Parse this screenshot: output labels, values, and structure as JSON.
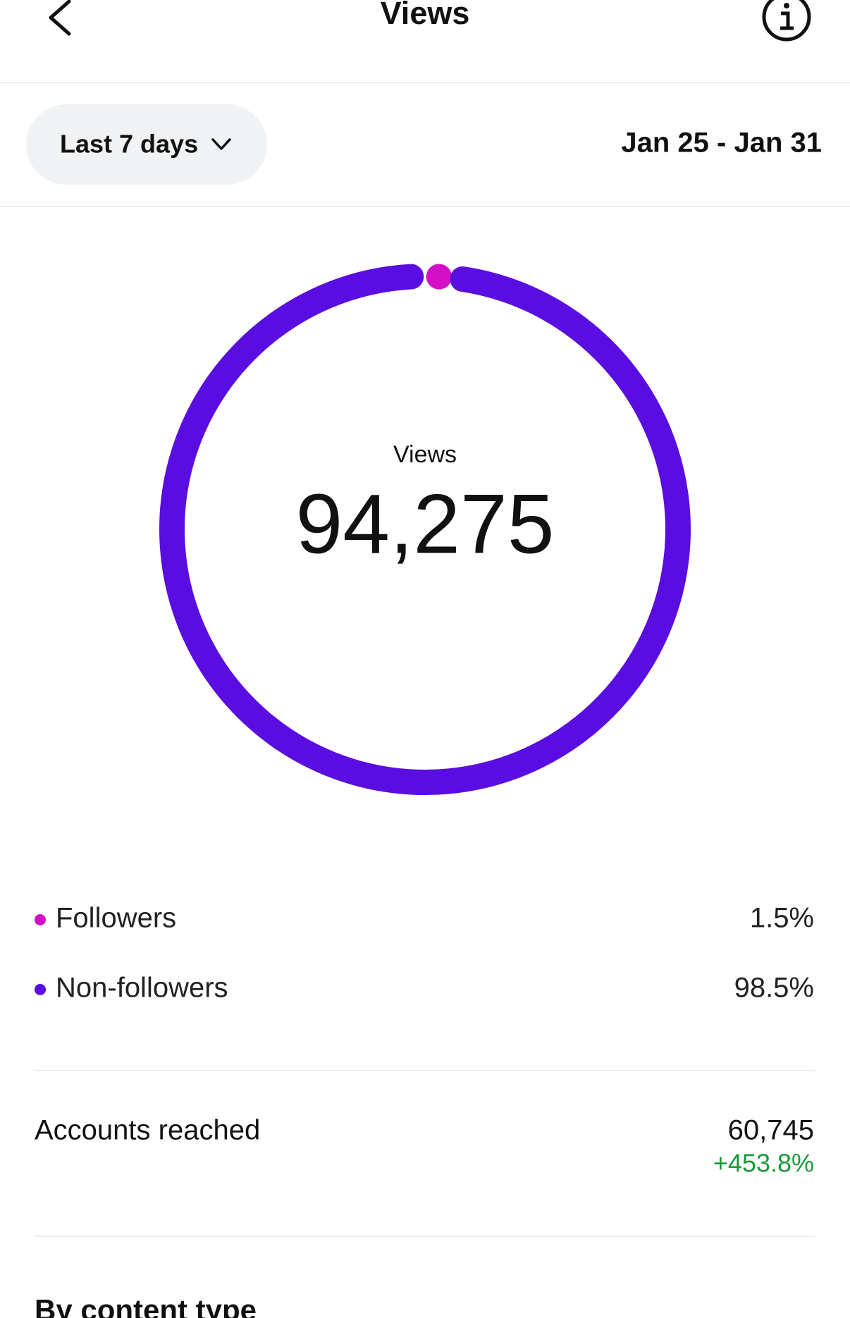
{
  "header": {
    "title": "Views"
  },
  "filter": {
    "period": "Last 7 days",
    "date_range": "Jan 25 - Jan 31"
  },
  "views_chart": {
    "type": "donut",
    "center_label": "Views",
    "total": "94,275",
    "series": [
      {
        "name": "Followers",
        "color": "#d30fc8",
        "value": 1.5,
        "value_label": "1.5%"
      },
      {
        "name": "Non-followers",
        "color": "#5a0de0",
        "value": 98.5,
        "value_label": "98.5%"
      }
    ]
  },
  "accounts_reached": {
    "label": "Accounts reached",
    "value": "60,745",
    "change": "+453.8%"
  },
  "section_title": "By content type"
}
